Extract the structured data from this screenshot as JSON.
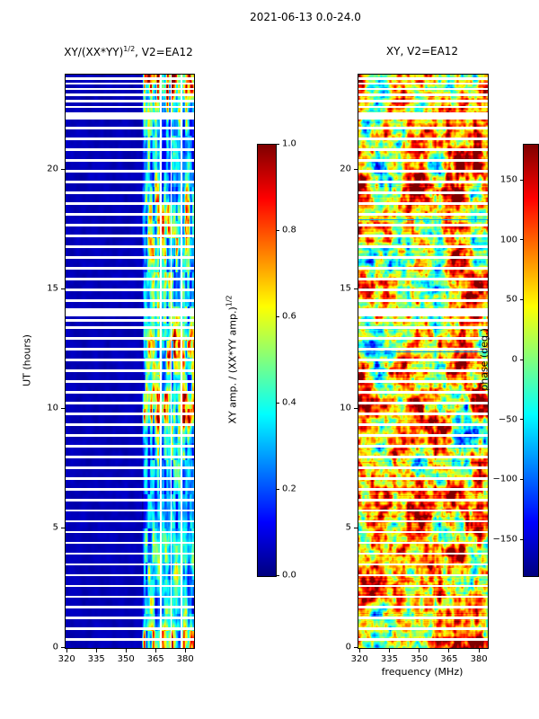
{
  "figure": {
    "title": "2021-06-13 0.0-24.0"
  },
  "left_plot": {
    "title_prefix": "XY/(XX*YY)",
    "title_sup": "1/2",
    "title_suffix": ", V2=EA12",
    "ylabel": "UT (hours)"
  },
  "right_plot": {
    "title": "XY, V2=EA12",
    "xlabel": "frequency (MHz)"
  },
  "left_colorbar": {
    "label_prefix": "XY amp. / (XX*YY amp.)",
    "label_sup": "1/2"
  },
  "right_colorbar": {
    "label": "phase (deg.)"
  },
  "chart_data": [
    {
      "type": "heatmap",
      "title": "XY/(XX*YY)^(1/2), V2=EA12",
      "xlabel": "frequency (MHz)",
      "ylabel": "UT (hours)",
      "xlim": [
        319,
        384
      ],
      "ylim": [
        0,
        24
      ],
      "xticks": [
        320,
        335,
        350,
        365,
        380
      ],
      "yticks": [
        0,
        5,
        10,
        15,
        20
      ],
      "colormap": "jet",
      "value_range": [
        0,
        1
      ],
      "colorbar_label": "XY amp. / (XX*YY amp.)^(1/2)",
      "colorbar_ticks": [
        0.0,
        0.2,
        0.4,
        0.6,
        0.8,
        1.0
      ],
      "tick_decimals": 1,
      "background_value": 0.05,
      "active_band_mhz": [
        357.5,
        384
      ],
      "band_column_gaps_mhz": [
        367.3,
        372.4,
        377.6
      ],
      "band_intensity_by_ut": [
        [
          0,
          0.8
        ],
        [
          0.7,
          0.75
        ],
        [
          1.2,
          0.5
        ],
        [
          2,
          0.45
        ],
        [
          3,
          0.5
        ],
        [
          4,
          0.55
        ],
        [
          5,
          0.4
        ],
        [
          6,
          0.35
        ],
        [
          7,
          0.4
        ],
        [
          8,
          0.5
        ],
        [
          9,
          0.55
        ],
        [
          9.6,
          0.9
        ],
        [
          10.6,
          0.95
        ],
        [
          11.2,
          0.6
        ],
        [
          11.8,
          0.8
        ],
        [
          12.8,
          0.85
        ],
        [
          13.6,
          0.55
        ],
        [
          14.4,
          0.45
        ],
        [
          15,
          0.5
        ],
        [
          16,
          0.6
        ],
        [
          16.8,
          0.8
        ],
        [
          18,
          0.85
        ],
        [
          19,
          0.6
        ],
        [
          20,
          0.45
        ],
        [
          21,
          0.4
        ],
        [
          22,
          0.5
        ],
        [
          22.8,
          0.7
        ],
        [
          23.3,
          0.95
        ],
        [
          24,
          1.0
        ]
      ],
      "gap_rows_ut": [
        0.35,
        0.8,
        1.25,
        1.7,
        2.15,
        2.6,
        3.05,
        3.5,
        3.95,
        4.4,
        4.85,
        5.3,
        5.75,
        6.2,
        6.65,
        7.1,
        7.55,
        8.0,
        8.45,
        8.9,
        9.35,
        9.8,
        10.25,
        10.7,
        11.15,
        11.6,
        12.05,
        12.5,
        12.95,
        13.4,
        13.72,
        14.55,
        15.0,
        15.45,
        15.9,
        16.35,
        16.8,
        17.25,
        17.7,
        18.15,
        18.6,
        19.05,
        19.5,
        19.95,
        20.4,
        20.85,
        21.3,
        21.75,
        22.65,
        22.9,
        23.15,
        23.4,
        23.62,
        23.82
      ],
      "wide_gaps_ut": [
        [
          13.88,
          14.22
        ],
        [
          22.12,
          22.42
        ]
      ]
    },
    {
      "type": "heatmap",
      "title": "XY, V2=EA12",
      "xlabel": "frequency (MHz)",
      "ylabel": "UT (hours)",
      "xlim": [
        319,
        384
      ],
      "ylim": [
        0,
        24
      ],
      "xticks": [
        320,
        335,
        350,
        365,
        380
      ],
      "yticks": [
        0,
        5,
        10,
        15,
        20
      ],
      "colormap": "jet",
      "value_range": [
        -180,
        180
      ],
      "colorbar_label": "phase (deg.)",
      "colorbar_ticks": [
        -150,
        -100,
        -50,
        0,
        50,
        100,
        150
      ],
      "tick_decimals": 0,
      "phase_bias_deg": 60,
      "active_band_mhz": [
        357.5,
        384
      ],
      "gap_rows_ut": [
        0.35,
        0.8,
        1.25,
        1.7,
        2.15,
        2.6,
        3.05,
        3.5,
        3.95,
        4.4,
        4.85,
        5.3,
        5.75,
        6.2,
        6.65,
        7.1,
        7.55,
        8.0,
        8.45,
        8.9,
        9.35,
        9.8,
        10.25,
        10.7,
        11.15,
        11.6,
        12.05,
        12.5,
        12.95,
        13.4,
        13.72,
        14.55,
        15.0,
        15.45,
        15.9,
        16.35,
        16.8,
        17.25,
        17.7,
        18.15,
        18.6,
        19.05,
        19.5,
        19.95,
        20.4,
        20.85,
        21.3,
        21.75,
        22.65,
        22.9,
        23.15,
        23.4,
        23.62,
        23.82
      ],
      "wide_gaps_ut": [
        [
          13.88,
          14.22
        ],
        [
          22.12,
          22.42
        ]
      ]
    }
  ]
}
